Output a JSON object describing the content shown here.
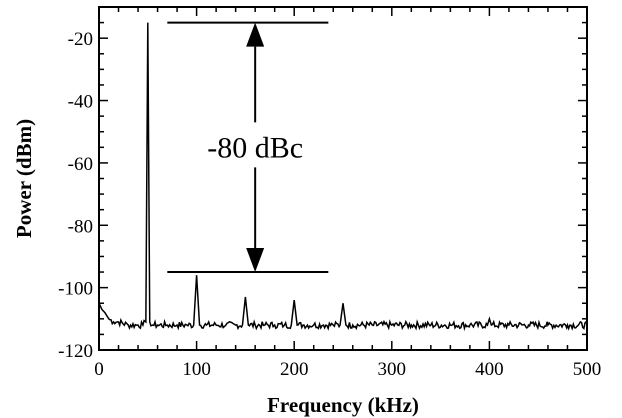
{
  "chart_data": {
    "type": "line",
    "title": "",
    "xlabel": "Frequency (kHz)",
    "ylabel": "Power (dBm)",
    "xlim": [
      0,
      500
    ],
    "ylim": [
      -120,
      -10
    ],
    "x_ticks": [
      0,
      100,
      200,
      300,
      400,
      500
    ],
    "y_ticks": [
      -20,
      -40,
      -60,
      -80,
      -100,
      -120
    ],
    "x_tick_labels": [
      "0",
      "100",
      "200",
      "300",
      "400",
      "500"
    ],
    "y_tick_labels": [
      "-20",
      "-40",
      "-60",
      "-80",
      "-100",
      "-120"
    ],
    "grid": false,
    "legend": "none",
    "noise_floor_dbm": -112,
    "peaks": [
      {
        "x": 50,
        "y": -15
      },
      {
        "x": 100,
        "y": -96
      },
      {
        "x": 150,
        "y": -103
      },
      {
        "x": 200,
        "y": -104
      },
      {
        "x": 250,
        "y": -105
      },
      {
        "x": 400,
        "y": -110
      }
    ],
    "series": [
      {
        "x": [
          0,
          3,
          6,
          10,
          15,
          20,
          30,
          40,
          45,
          48,
          50,
          52,
          55,
          60,
          70,
          80,
          90,
          97,
          100,
          103,
          110,
          120,
          130,
          140,
          147,
          150,
          153,
          160,
          170,
          180,
          190,
          197,
          200,
          203,
          210,
          220,
          230,
          240,
          247,
          250,
          253,
          260,
          280,
          300,
          320,
          340,
          360,
          380,
          398,
          400,
          402,
          420,
          440,
          460,
          480,
          500
        ],
        "y": [
          -105,
          -107,
          -108,
          -110,
          -111,
          -111,
          -112,
          -112,
          -112,
          -111,
          -15,
          -111,
          -112,
          -112,
          -112,
          -112,
          -112,
          -112,
          -96,
          -112,
          -112,
          -112,
          -112,
          -112,
          -112,
          -103,
          -112,
          -112,
          -112,
          -112,
          -112,
          -112,
          -104,
          -112,
          -112,
          -112,
          -112,
          -112,
          -112,
          -105,
          -112,
          -112,
          -112,
          -112,
          -112,
          -112,
          -112,
          -112,
          -112,
          -110,
          -112,
          -112,
          -112,
          -112,
          -112,
          -112
        ]
      }
    ],
    "annotations": [
      {
        "text": "-80 dBc",
        "from_y": -15,
        "to_y": -95,
        "at_x": 160,
        "line_x_range": [
          70,
          235
        ]
      }
    ]
  }
}
